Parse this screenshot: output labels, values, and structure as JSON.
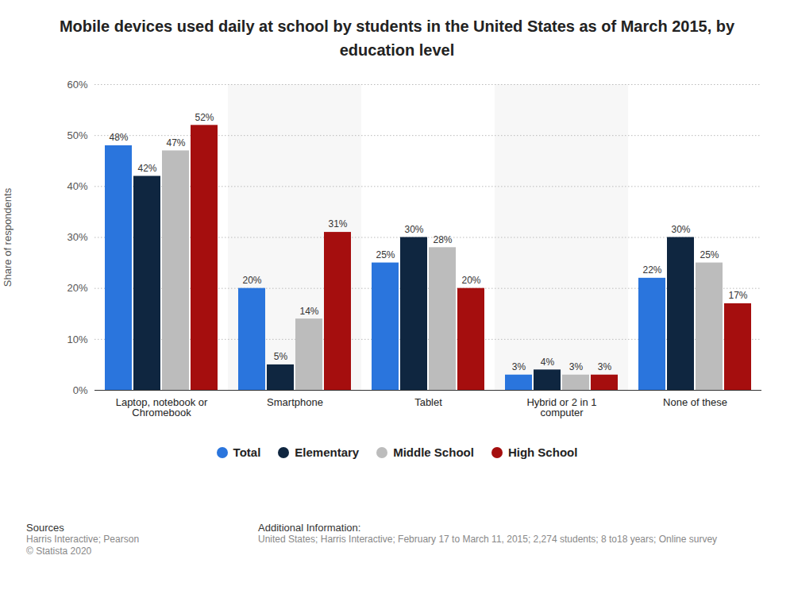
{
  "chart_data": {
    "type": "bar",
    "title": "Mobile devices used daily at school by students in the United States as of March 2015, by education level",
    "y_label": "Share of respondents",
    "categories": [
      "Laptop, notebook or Chromebook",
      "Smartphone",
      "Tablet",
      "Hybrid or 2 in 1 computer",
      "None of these"
    ],
    "series": [
      {
        "name": "Total",
        "color": "#2a75dd",
        "values": [
          48,
          20,
          25,
          3,
          22
        ],
        "value_labels": [
          "48%",
          "20%",
          "25%",
          "3%",
          "22%"
        ]
      },
      {
        "name": "Elementary",
        "color": "#0f2640",
        "values": [
          42,
          5,
          30,
          4,
          30
        ],
        "value_labels": [
          "42%",
          "5%",
          "30%",
          "4%",
          "30%"
        ]
      },
      {
        "name": "Middle School",
        "color": "#bcbcbc",
        "values": [
          47,
          14,
          28,
          3,
          25
        ],
        "value_labels": [
          "47%",
          "14%",
          "28%",
          "3%",
          "25%"
        ]
      },
      {
        "name": "High School",
        "color": "#a50e0e",
        "values": [
          52,
          31,
          20,
          3,
          17
        ],
        "value_labels": [
          "52%",
          "31%",
          "20%",
          "3%",
          "17%"
        ]
      }
    ],
    "ylim": [
      0,
      60
    ],
    "yticks": [
      {
        "value": 0,
        "label": "0%"
      },
      {
        "value": 10,
        "label": "10%"
      },
      {
        "value": 20,
        "label": "20%"
      },
      {
        "value": 30,
        "label": "30%"
      },
      {
        "value": 40,
        "label": "40%"
      },
      {
        "value": 50,
        "label": "50%"
      },
      {
        "value": 60,
        "label": "60%"
      }
    ],
    "grid": true,
    "data_labels": true,
    "legend": "bottom",
    "source_heading": "Sources",
    "source_lines": [
      "Harris Interactive; Pearson",
      "© Statista 2020"
    ],
    "info_heading": "Additional Information:",
    "info_text": "United States; Harris Interactive; February 17 to March 11, 2015; 2,274 students; 8 to18 years; Online survey"
  }
}
